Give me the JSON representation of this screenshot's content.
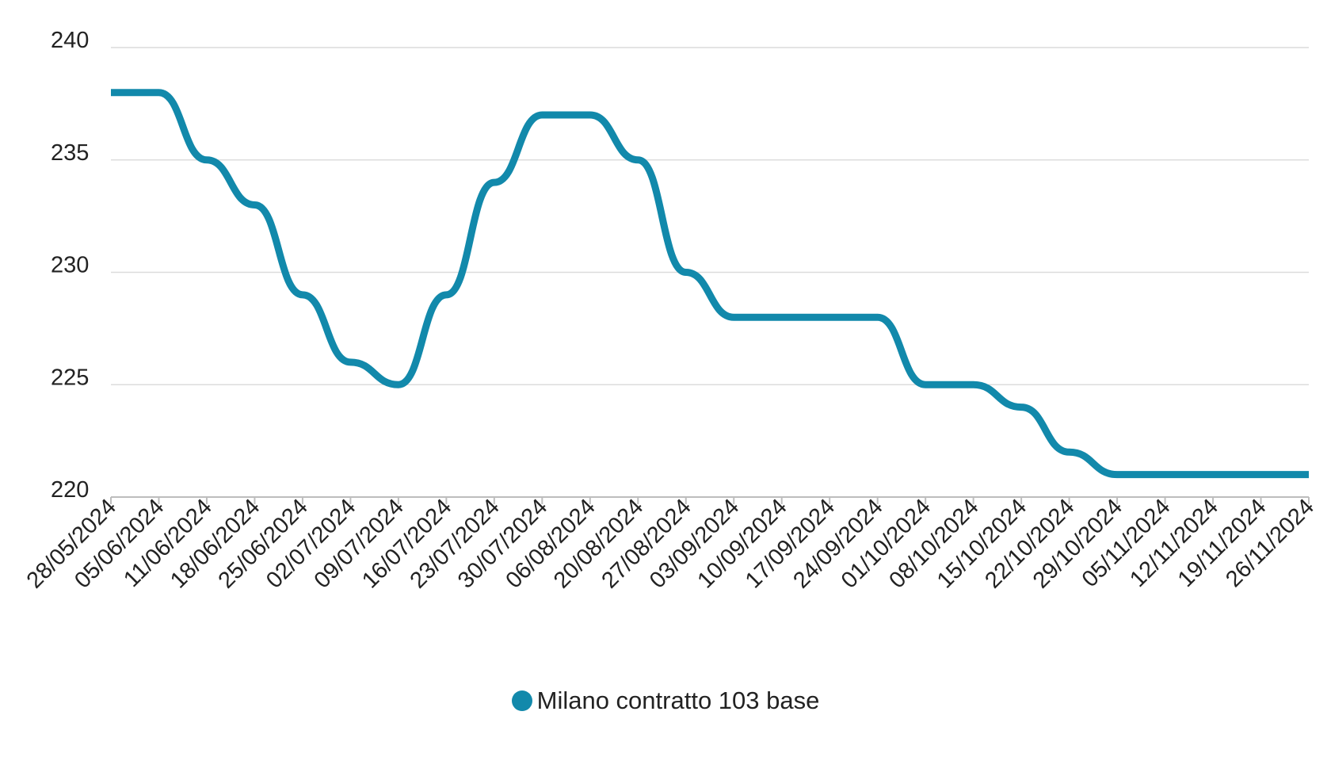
{
  "chart_data": {
    "type": "line",
    "x": [
      "28/05/2024",
      "05/06/2024",
      "11/06/2024",
      "18/06/2024",
      "25/06/2024",
      "02/07/2024",
      "09/07/2024",
      "16/07/2024",
      "23/07/2024",
      "30/07/2024",
      "06/08/2024",
      "20/08/2024",
      "27/08/2024",
      "03/09/2024",
      "10/09/2024",
      "17/09/2024",
      "24/09/2024",
      "01/10/2024",
      "08/10/2024",
      "15/10/2024",
      "22/10/2024",
      "29/10/2024",
      "05/11/2024",
      "12/11/2024",
      "19/11/2024",
      "26/11/2024"
    ],
    "series": [
      {
        "name": "Milano contratto 103 base",
        "color": "#1289ab",
        "values": [
          238,
          238,
          235,
          233,
          229,
          226,
          225,
          229,
          234,
          237,
          237,
          235,
          230,
          228,
          228,
          228,
          228,
          225,
          225,
          224,
          222,
          221,
          221,
          221,
          221,
          221
        ]
      }
    ],
    "ylim": [
      220,
      240
    ],
    "yticks": [
      "220",
      "225",
      "230",
      "235",
      "240"
    ],
    "grid": true,
    "legend_position": "bottom"
  }
}
